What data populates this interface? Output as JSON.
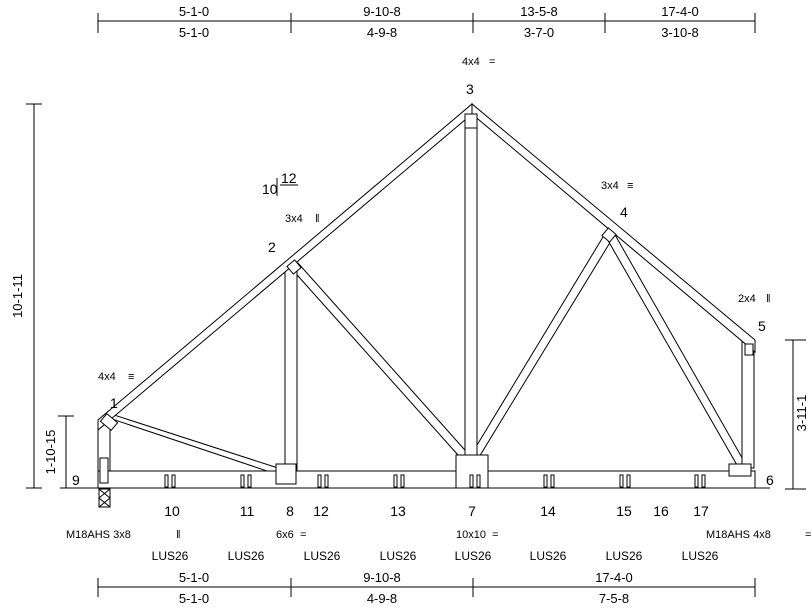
{
  "top_dims": [
    {
      "upper": "5-1-0",
      "lower": "5-1-0"
    },
    {
      "upper": "9-10-8",
      "lower": "4-9-8"
    },
    {
      "upper": "13-5-8",
      "lower": "3-7-0"
    },
    {
      "upper": "17-4-0",
      "lower": "3-10-8"
    }
  ],
  "bottom_dims": [
    {
      "upper": "5-1-0",
      "lower": "5-1-0"
    },
    {
      "upper": "9-10-8",
      "lower": "4-9-8"
    },
    {
      "upper": "17-4-0",
      "lower": "7-5-8"
    }
  ],
  "left_dims": {
    "overall": "10-1-11",
    "heel": "1-10-15"
  },
  "right_dims": {
    "heel": "3-11-1"
  },
  "pitch": {
    "rise": "10",
    "run": "12"
  },
  "top_joints": [
    "1",
    "2",
    "3",
    "4",
    "5"
  ],
  "bottom_joints": [
    "9",
    "10",
    "11",
    "8",
    "12",
    "13",
    "7",
    "14",
    "15",
    "16",
    "17",
    "6"
  ],
  "plates": {
    "joint1": "4x4",
    "joint2": "3x4",
    "joint3": "4x4",
    "joint4": "3x4",
    "joint5": "2x4",
    "joint9": "M18AHS 3x8",
    "joint8": "6x6",
    "joint7": "10x10",
    "joint6": "M18AHS 4x8"
  },
  "hangers": [
    "LUS26",
    "LUS26",
    "LUS26",
    "LUS26",
    "LUS26",
    "LUS26",
    "LUS26",
    "LUS26"
  ]
}
